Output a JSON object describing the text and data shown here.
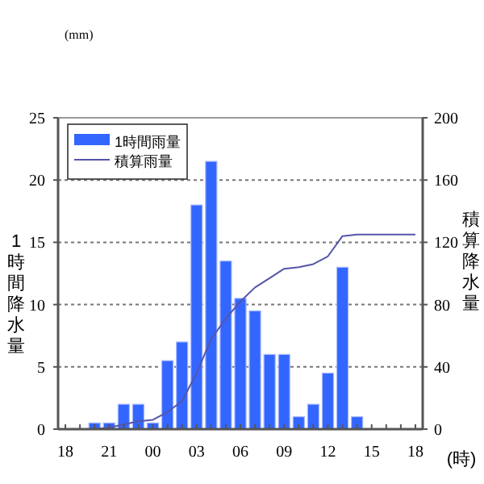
{
  "chart_data": {
    "type": "bar",
    "ylabel": "1時間降水量",
    "y2label": "積算降水量",
    "xlabel": "(時)",
    "annotations": [
      "(mm)"
    ],
    "categories": [
      "18",
      null,
      null,
      "21",
      null,
      null,
      "00",
      null,
      null,
      "03",
      null,
      null,
      "06",
      null,
      null,
      "09",
      null,
      null,
      "12",
      null,
      null,
      "15",
      null,
      null,
      "18"
    ],
    "ylim": [
      0,
      25
    ],
    "yticks": [
      0,
      5,
      10,
      15,
      20,
      25
    ],
    "y2lim": [
      0,
      200
    ],
    "y2ticks": [
      0,
      40,
      80,
      120,
      160,
      200
    ],
    "grid": "y",
    "legend": "top left",
    "series": [
      {
        "name": "1時間雨量",
        "color": "#3366ff",
        "values": [
          null,
          null,
          0.5,
          0.5,
          2,
          2,
          0.5,
          5.5,
          7,
          18,
          21.5,
          13.5,
          10.5,
          9.5,
          6,
          6,
          1,
          2,
          4.5,
          13,
          1,
          null,
          null,
          null,
          null
        ]
      },
      {
        "name": "積算雨量",
        "type": "line",
        "axis": "y2",
        "color": "#5555aa",
        "values": [
          null,
          0,
          0,
          1,
          3,
          5,
          6,
          11,
          18,
          36,
          58,
          71,
          82,
          91,
          97,
          103,
          104,
          106,
          111,
          124,
          125,
          125,
          125,
          125,
          125
        ]
      }
    ]
  }
}
